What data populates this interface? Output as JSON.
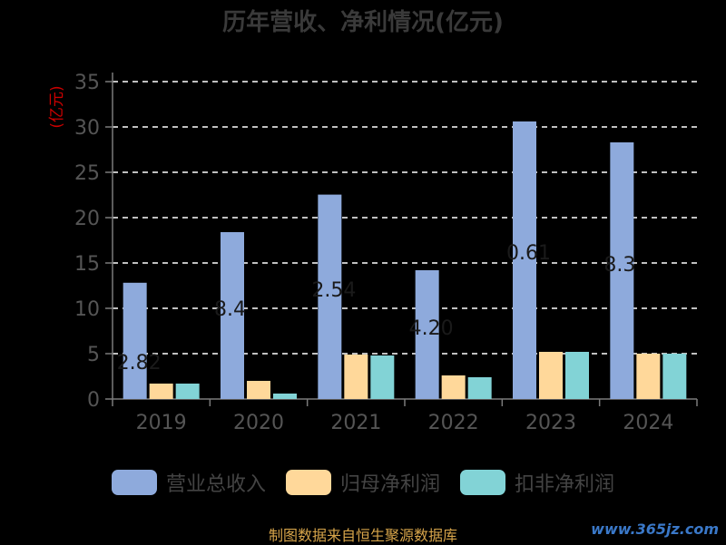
{
  "chart_data": {
    "type": "bar",
    "title": "历年营收、净利情况(亿元)",
    "ylabel": "(亿元)",
    "categories": [
      "2019",
      "2020",
      "2021",
      "2022",
      "2023",
      "2024"
    ],
    "ylim": [
      0,
      35
    ],
    "yticks": [
      0,
      5,
      10,
      15,
      20,
      25,
      30,
      35
    ],
    "grid": true,
    "legend_position": "bottom",
    "series": [
      {
        "name": "营业总收入",
        "color": "#8eaadc",
        "values": [
          12.82,
          18.4,
          22.54,
          14.2,
          30.61,
          28.3
        ]
      },
      {
        "name": "归母净利润",
        "color": "#ffd89a",
        "values": [
          1.7,
          2.0,
          4.9,
          2.6,
          5.2,
          5.0
        ]
      },
      {
        "name": "扣非净利润",
        "color": "#82d3d6",
        "values": [
          1.7,
          0.6,
          4.8,
          2.4,
          5.2,
          5.0
        ]
      }
    ],
    "data_labels_visible": [
      "2.82",
      "8.4",
      "2.54",
      "4.20",
      "0.61",
      "8.3"
    ]
  },
  "legend": {
    "items": [
      "营业总收入",
      "归母净利润",
      "扣非净利润"
    ]
  },
  "source_text": "制图数据来自恒生聚源数据库",
  "watermark": "www.365jz.com",
  "colors": {
    "axis": "#7a7a7a",
    "grid": "#ffffff",
    "label_red": "#cc0000"
  }
}
